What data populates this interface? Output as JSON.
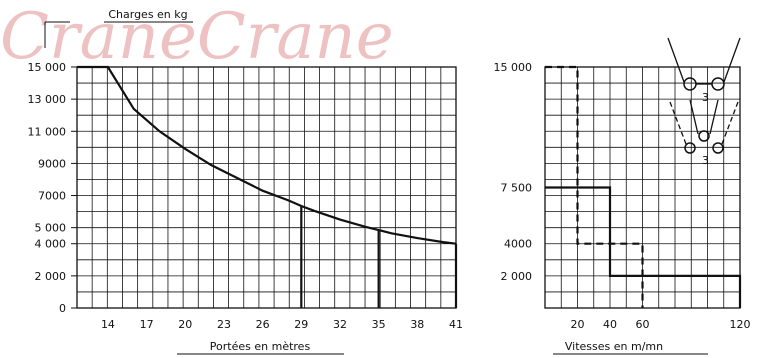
{
  "watermark": "CraneCrane",
  "chart_data": [
    {
      "type": "line",
      "title": "Charges en kg",
      "xlabel": "Portées en mètres",
      "ylabel": "",
      "x_ticks": [
        "14",
        "17",
        "20",
        "23",
        "26",
        "29",
        "32",
        "35",
        "38",
        "41"
      ],
      "y_ticks": [
        {
          "label": "15 000",
          "value": 15000
        },
        {
          "label": "13 000",
          "value": 13000
        },
        {
          "label": "11 000",
          "value": 11000
        },
        {
          "label": "9000",
          "value": 9000
        },
        {
          "label": "7000",
          "value": 7000
        },
        {
          "label": "5 000",
          "value": 5000
        },
        {
          "label": "4 000",
          "value": 4000
        },
        {
          "label": "2 000",
          "value": 2000
        },
        {
          "label": "0",
          "value": 0
        }
      ],
      "xlim": [
        11.6,
        41
      ],
      "ylim": [
        0,
        15000
      ],
      "grid": true,
      "series": [
        {
          "x": [
            11.6,
            14,
            16,
            18,
            20,
            22,
            24,
            26,
            28,
            29,
            30,
            32,
            34,
            35,
            36,
            38,
            40,
            41
          ],
          "y": [
            15000,
            15000,
            12400,
            11000,
            9900,
            8900,
            8100,
            7300,
            6700,
            6350,
            6050,
            5500,
            5050,
            4850,
            4650,
            4350,
            4100,
            4000
          ]
        }
      ],
      "markers": [
        {
          "x": 29,
          "y": 6350
        },
        {
          "x": 35,
          "y": 4850
        },
        {
          "x": 41,
          "y": 4000
        }
      ]
    },
    {
      "type": "line",
      "xlabel": "Vitesses en m/mn",
      "ylabel": "",
      "x_ticks": [
        "20",
        "40",
        "60",
        "120"
      ],
      "y_ticks": [
        {
          "label": "15 000",
          "value": 15000
        },
        {
          "label": "7 500",
          "value": 7500
        },
        {
          "label": "4000",
          "value": 4000
        },
        {
          "label": "2 000",
          "value": 2000
        }
      ],
      "xlim": [
        0,
        120
      ],
      "ylim": [
        0,
        15000
      ],
      "grid": true,
      "series": [
        {
          "style": "solid",
          "x": [
            0,
            40,
            40,
            120,
            120
          ],
          "y": [
            7500,
            7500,
            2000,
            2000,
            0
          ]
        },
        {
          "style": "dashed",
          "x": [
            0,
            20,
            20,
            60,
            60
          ],
          "y": [
            15000,
            15000,
            4000,
            4000,
            0
          ]
        }
      ]
    }
  ],
  "icons": [
    "single-reeving-icon",
    "double-reeving-icon"
  ],
  "icon_labels": [
    "3",
    "3"
  ]
}
